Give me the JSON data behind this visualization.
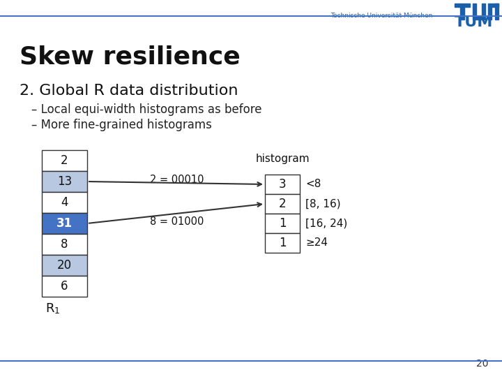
{
  "title": "Skew resilience",
  "subtitle": "2. Global R data distribution",
  "bullets": [
    "– Local equi-width histograms as before",
    "– More fine-grained histograms"
  ],
  "r1_values": [
    "2",
    "13",
    "4",
    "31",
    "8",
    "20",
    "6"
  ],
  "r1_colors": [
    "#ffffff",
    "#b8c8e0",
    "#ffffff",
    "#4472c4",
    "#ffffff",
    "#b8c8e0",
    "#ffffff"
  ],
  "r1_label": "R",
  "r1_subscript": "1",
  "hist_values": [
    "3",
    "2",
    "1",
    "1"
  ],
  "hist_labels": [
    "<8",
    "[8, 16)",
    "[16, 24)",
    "≥24"
  ],
  "hist_label": "histogram",
  "arrow1_text": "2 = 00010",
  "arrow2_text": "8 = 01000",
  "tum_text": "Technische Universität München",
  "tum_color": "#1a5fa8",
  "page_number": "20",
  "bg_color": "#ffffff",
  "header_line_color": "#4472c4",
  "footer_line_color": "#4472c4"
}
